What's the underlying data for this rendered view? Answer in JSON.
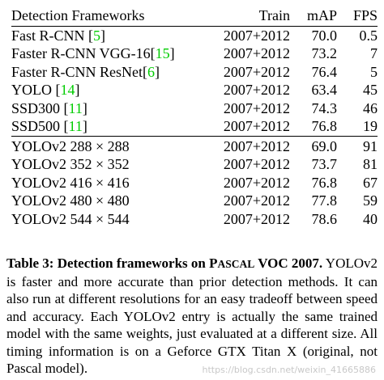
{
  "table": {
    "headers": {
      "framework": "Detection Frameworks",
      "train": "Train",
      "map": "mAP",
      "fps": "FPS"
    },
    "group1": [
      {
        "name": "Fast R-CNN ",
        "cite": "5",
        "train": "2007+2012",
        "map": "70.0",
        "fps": "0.5"
      },
      {
        "name": "Faster R-CNN VGG-16",
        "cite": "15",
        "train": "2007+2012",
        "map": "73.2",
        "fps": "7"
      },
      {
        "name": "Faster R-CNN ResNet",
        "cite": "6",
        "train": "2007+2012",
        "map": "76.4",
        "fps": "5"
      },
      {
        "name": "YOLO ",
        "cite": "14",
        "train": "2007+2012",
        "map": "63.4",
        "fps": "45"
      },
      {
        "name": "SSD300 ",
        "cite": "11",
        "train": "2007+2012",
        "map": "74.3",
        "fps": "46"
      },
      {
        "name": "SSD500 ",
        "cite": "11",
        "train": "2007+2012",
        "map": "76.8",
        "fps": "19"
      }
    ],
    "group2": [
      {
        "name": "YOLOv2 288 × 288",
        "train": "2007+2012",
        "map": "69.0",
        "fps": "91"
      },
      {
        "name": "YOLOv2 352 × 352",
        "train": "2007+2012",
        "map": "73.7",
        "fps": "81"
      },
      {
        "name": "YOLOv2 416 × 416",
        "train": "2007+2012",
        "map": "76.8",
        "fps": "67"
      },
      {
        "name": "YOLOv2 480 × 480",
        "train": "2007+2012",
        "map": "77.8",
        "fps": "59"
      },
      {
        "name": "YOLOv2 544 × 544",
        "train": "2007+2012",
        "map": "78.6",
        "fps": "40"
      }
    ],
    "bracket_open": "[",
    "bracket_close": "]"
  },
  "caption": {
    "label": "Table 3:",
    "title_before": "Detection frameworks on P",
    "title_smallcaps": "ASCAL",
    "title_after": " VOC 2007.",
    "body": "YOLOv2 is faster and more accurate than prior detection methods. It can also run at different resolutions for an easy tradeoff between speed and accuracy. Each YOLOv2 entry is actually the same trained model with the same weights, just evaluated at a different size. All timing information is on a Geforce GTX Titan X (original, not Pascal model)."
  },
  "watermark": "https://blog.csdn.net/weixin_41665886",
  "colors": {
    "citation": "#00cc00",
    "text": "#000000"
  }
}
